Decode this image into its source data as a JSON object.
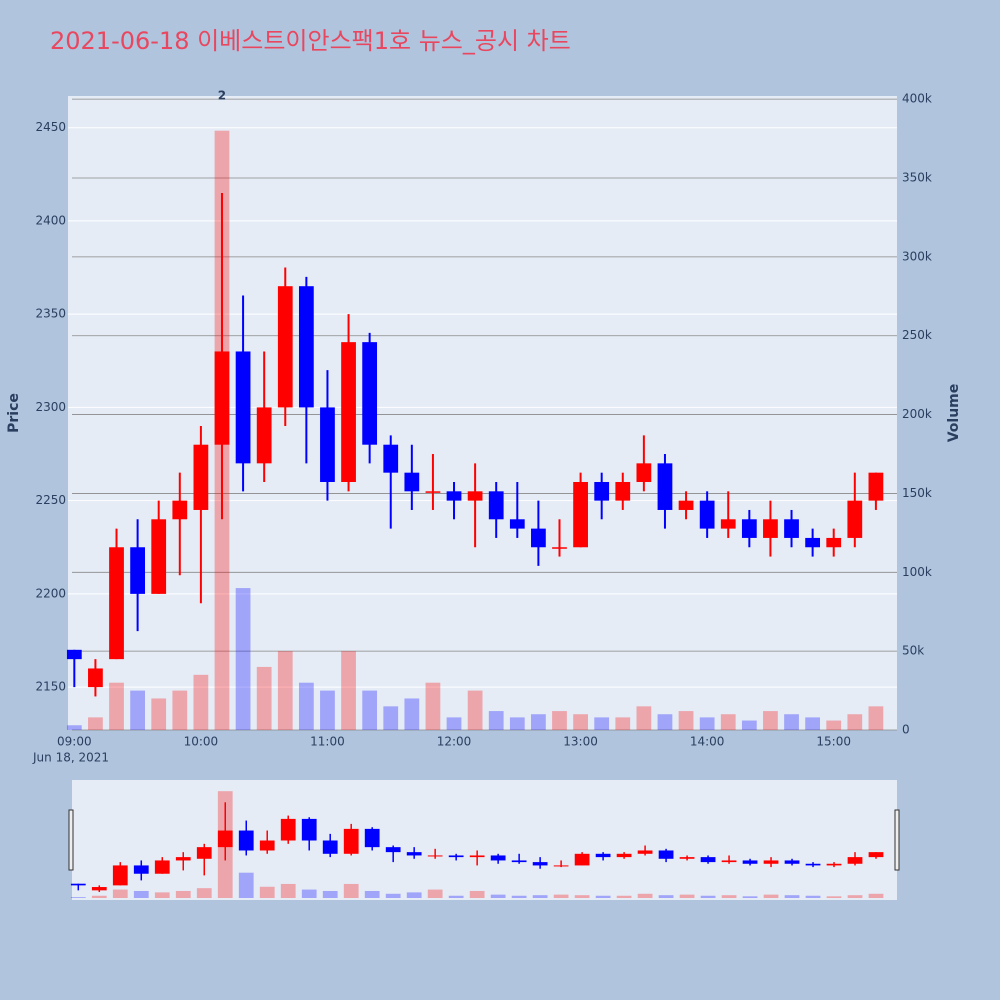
{
  "chart_data": {
    "type": "candlestick",
    "title": "2021-06-18 이베스트이안스팩1호 뉴스_공시 차트",
    "y_label": "Price",
    "y2_label": "Volume",
    "x_date_label": "Jun 18, 2021",
    "increasing_color": "#ff0000",
    "decreasing_color": "#0000ff",
    "x": [
      "09:00",
      "09:10",
      "09:20",
      "09:30",
      "09:40",
      "09:50",
      "10:00",
      "10:10",
      "10:20",
      "10:30",
      "10:40",
      "10:50",
      "11:00",
      "11:10",
      "11:20",
      "11:30",
      "11:40",
      "11:50",
      "12:00",
      "12:10",
      "12:20",
      "12:30",
      "12:40",
      "12:50",
      "13:00",
      "13:10",
      "13:20",
      "13:30",
      "13:40",
      "13:50",
      "14:00",
      "14:10",
      "14:20",
      "14:30",
      "14:40",
      "14:50",
      "15:00",
      "15:10",
      "15:20"
    ],
    "open": [
      2170,
      2150,
      2165,
      2225,
      2200,
      2240,
      2245,
      2280,
      2330,
      2270,
      2300,
      2365,
      2300,
      2260,
      2335,
      2280,
      2265,
      2255,
      2255,
      2250,
      2255,
      2240,
      2235,
      2225,
      2225,
      2260,
      2250,
      2260,
      2270,
      2245,
      2250,
      2235,
      2240,
      2230,
      2240,
      2230,
      2225,
      2230,
      2250
    ],
    "high": [
      2170,
      2165,
      2235,
      2240,
      2250,
      2265,
      2290,
      2415,
      2360,
      2330,
      2375,
      2370,
      2320,
      2350,
      2340,
      2285,
      2280,
      2275,
      2260,
      2270,
      2260,
      2260,
      2250,
      2240,
      2265,
      2265,
      2265,
      2285,
      2275,
      2255,
      2255,
      2255,
      2245,
      2250,
      2245,
      2235,
      2235,
      2265,
      2265
    ],
    "low": [
      2150,
      2145,
      2165,
      2180,
      2200,
      2210,
      2195,
      2240,
      2255,
      2260,
      2290,
      2270,
      2250,
      2255,
      2270,
      2235,
      2245,
      2245,
      2240,
      2225,
      2230,
      2230,
      2215,
      2220,
      2225,
      2240,
      2245,
      2255,
      2235,
      2240,
      2230,
      2230,
      2225,
      2220,
      2225,
      2220,
      2220,
      2225,
      2245
    ],
    "close": [
      2165,
      2160,
      2225,
      2200,
      2240,
      2250,
      2280,
      2330,
      2270,
      2300,
      2365,
      2300,
      2260,
      2335,
      2280,
      2265,
      2255,
      2255,
      2250,
      2255,
      2240,
      2235,
      2225,
      2225,
      2260,
      2250,
      2260,
      2270,
      2245,
      2250,
      2235,
      2240,
      2230,
      2240,
      2230,
      2225,
      2230,
      2250,
      2265
    ],
    "volume": [
      3000,
      8000,
      30000,
      25000,
      20000,
      25000,
      35000,
      380000,
      90000,
      40000,
      50000,
      30000,
      25000,
      50000,
      25000,
      15000,
      20000,
      30000,
      8000,
      25000,
      12000,
      8000,
      10000,
      12000,
      10000,
      8000,
      8000,
      15000,
      10000,
      12000,
      8000,
      10000,
      6000,
      12000,
      10000,
      8000,
      6000,
      10000,
      15000
    ],
    "annotations": [
      {
        "text": "2",
        "x": "10:10"
      }
    ],
    "xlim": [
      "08:57",
      "15:30"
    ],
    "xticks": [
      "09:00",
      "10:00",
      "11:00",
      "12:00",
      "13:00",
      "14:00",
      "15:00"
    ],
    "ylim": [
      2127,
      2467
    ],
    "yticks": [
      2150,
      2200,
      2250,
      2300,
      2350,
      2400,
      2450
    ],
    "y2lim": [
      0,
      402000
    ],
    "y2ticks": [
      0,
      {
        "value": 50000,
        "label": "50k"
      },
      {
        "value": 100000,
        "label": "100k"
      },
      {
        "value": 150000,
        "label": "150k"
      },
      {
        "value": 200000,
        "label": "200k"
      },
      {
        "value": 250000,
        "label": "250k"
      },
      {
        "value": 300000,
        "label": "300k"
      },
      {
        "value": 350000,
        "label": "350k"
      },
      {
        "value": 400000,
        "label": "400k"
      }
    ],
    "grid": true
  }
}
